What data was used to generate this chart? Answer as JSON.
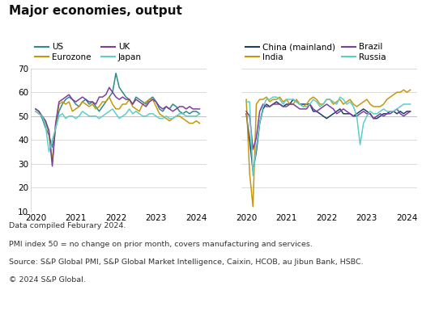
{
  "title": "Major economies, output",
  "footnotes": [
    "Data compiled Feburary 2024.",
    "PMI index 50 = no change on prior month, covers manufacturing and services.",
    "Source: S&P Global PMI, S&P Global Market Intelligence, Caixin, HCOB, au Jibun Bank, HSBC.",
    "© 2024 S&P Global."
  ],
  "ylim": [
    10,
    70
  ],
  "yticks": [
    10,
    20,
    30,
    40,
    50,
    60,
    70
  ],
  "colors": {
    "US": "#2e8b8b",
    "Eurozone": "#c8960c",
    "UK": "#7b3fa0",
    "Japan": "#5ecec8",
    "China": "#1e4060",
    "India": "#c8960c",
    "Brazil": "#7b3fa0",
    "Russia": "#5ecec8"
  },
  "left_chart": {
    "US": [
      53,
      52,
      49,
      45,
      42,
      37,
      45,
      52,
      55,
      57,
      58,
      57,
      55,
      54,
      56,
      57,
      55,
      56,
      54,
      52,
      54,
      56,
      58,
      60,
      68,
      62,
      60,
      58,
      57,
      55,
      58,
      57,
      56,
      55,
      57,
      58,
      56,
      53,
      52,
      54,
      53,
      55,
      54,
      52,
      51,
      52,
      51,
      52,
      52,
      51
    ],
    "Eurozone": [
      52,
      51,
      50,
      47,
      43,
      31,
      46,
      55,
      56,
      55,
      56,
      52,
      53,
      54,
      56,
      55,
      54,
      55,
      53,
      54,
      56,
      56,
      58,
      55,
      53,
      53,
      55,
      55,
      57,
      54,
      53,
      52,
      55,
      56,
      57,
      57,
      54,
      51,
      50,
      49,
      48,
      49,
      50,
      50,
      49,
      48,
      47,
      47,
      48,
      47
    ],
    "UK": [
      53,
      52,
      50,
      48,
      44,
      29,
      47,
      56,
      57,
      58,
      59,
      57,
      56,
      57,
      58,
      57,
      56,
      56,
      55,
      58,
      58,
      59,
      62,
      60,
      58,
      57,
      58,
      57,
      57,
      55,
      57,
      56,
      55,
      54,
      56,
      57,
      56,
      54,
      53,
      54,
      53,
      52,
      53,
      54,
      54,
      53,
      54,
      53,
      53,
      53
    ],
    "Japan": [
      52,
      51,
      50,
      46,
      35,
      40,
      45,
      50,
      51,
      49,
      50,
      50,
      49,
      50,
      52,
      51,
      50,
      50,
      50,
      49,
      50,
      51,
      52,
      53,
      51,
      49,
      50,
      51,
      53,
      51,
      52,
      51,
      50,
      50,
      51,
      51,
      50,
      49,
      49,
      50,
      49,
      49,
      50,
      51,
      51,
      50,
      50,
      50,
      50,
      51
    ]
  },
  "right_chart": {
    "China": [
      51,
      40,
      27,
      35,
      47,
      53,
      55,
      54,
      55,
      56,
      55,
      54,
      55,
      55,
      57,
      56,
      55,
      55,
      55,
      55,
      52,
      52,
      51,
      50,
      49,
      50,
      51,
      52,
      53,
      51,
      51,
      51,
      50,
      51,
      52,
      53,
      52,
      51,
      49,
      49,
      50,
      51,
      51,
      52,
      52,
      51,
      52,
      51,
      52,
      52
    ],
    "India": [
      57,
      26,
      12,
      55,
      57,
      57,
      58,
      56,
      57,
      57,
      58,
      56,
      57,
      55,
      55,
      57,
      55,
      54,
      55,
      57,
      58,
      57,
      55,
      55,
      57,
      57,
      55,
      56,
      57,
      55,
      56,
      57,
      55,
      54,
      55,
      56,
      57,
      55,
      54,
      54,
      54,
      55,
      57,
      58,
      59,
      60,
      60,
      61,
      60,
      61
    ],
    "Brazil": [
      52,
      50,
      36,
      41,
      52,
      55,
      54,
      54,
      55,
      55,
      55,
      54,
      54,
      55,
      55,
      54,
      53,
      53,
      53,
      55,
      53,
      52,
      53,
      54,
      55,
      54,
      53,
      51,
      52,
      53,
      52,
      51,
      50,
      50,
      51,
      52,
      51,
      51,
      49,
      50,
      51,
      50,
      51,
      51,
      52,
      53,
      51,
      50,
      51,
      52
    ],
    "Russia": [
      56,
      56,
      25,
      37,
      47,
      54,
      57,
      57,
      58,
      58,
      57,
      55,
      57,
      57,
      57,
      56,
      55,
      54,
      54,
      55,
      57,
      56,
      54,
      55,
      57,
      57,
      56,
      55,
      58,
      57,
      55,
      56,
      54,
      50,
      38,
      47,
      50,
      52,
      51,
      51,
      52,
      53,
      52,
      52,
      52,
      53,
      54,
      55,
      55,
      55
    ]
  },
  "n_points": 50,
  "x_start": 2020.0,
  "x_end": 2024.083,
  "xlim": [
    2019.88,
    2024.25
  ],
  "xtick_pos": [
    2020,
    2021,
    2022,
    2023,
    2024
  ],
  "xtick_labels": [
    "2020",
    "2021",
    "2022",
    "2023",
    "2024"
  ],
  "line_width": 1.1,
  "bg_color": "#ffffff",
  "grid_color": "#cccccc",
  "hline_color": "#aaaaaa",
  "title_fontsize": 11,
  "tick_fontsize": 7.5,
  "legend_fontsize": 7.5,
  "footnote_fontsize": 6.8
}
